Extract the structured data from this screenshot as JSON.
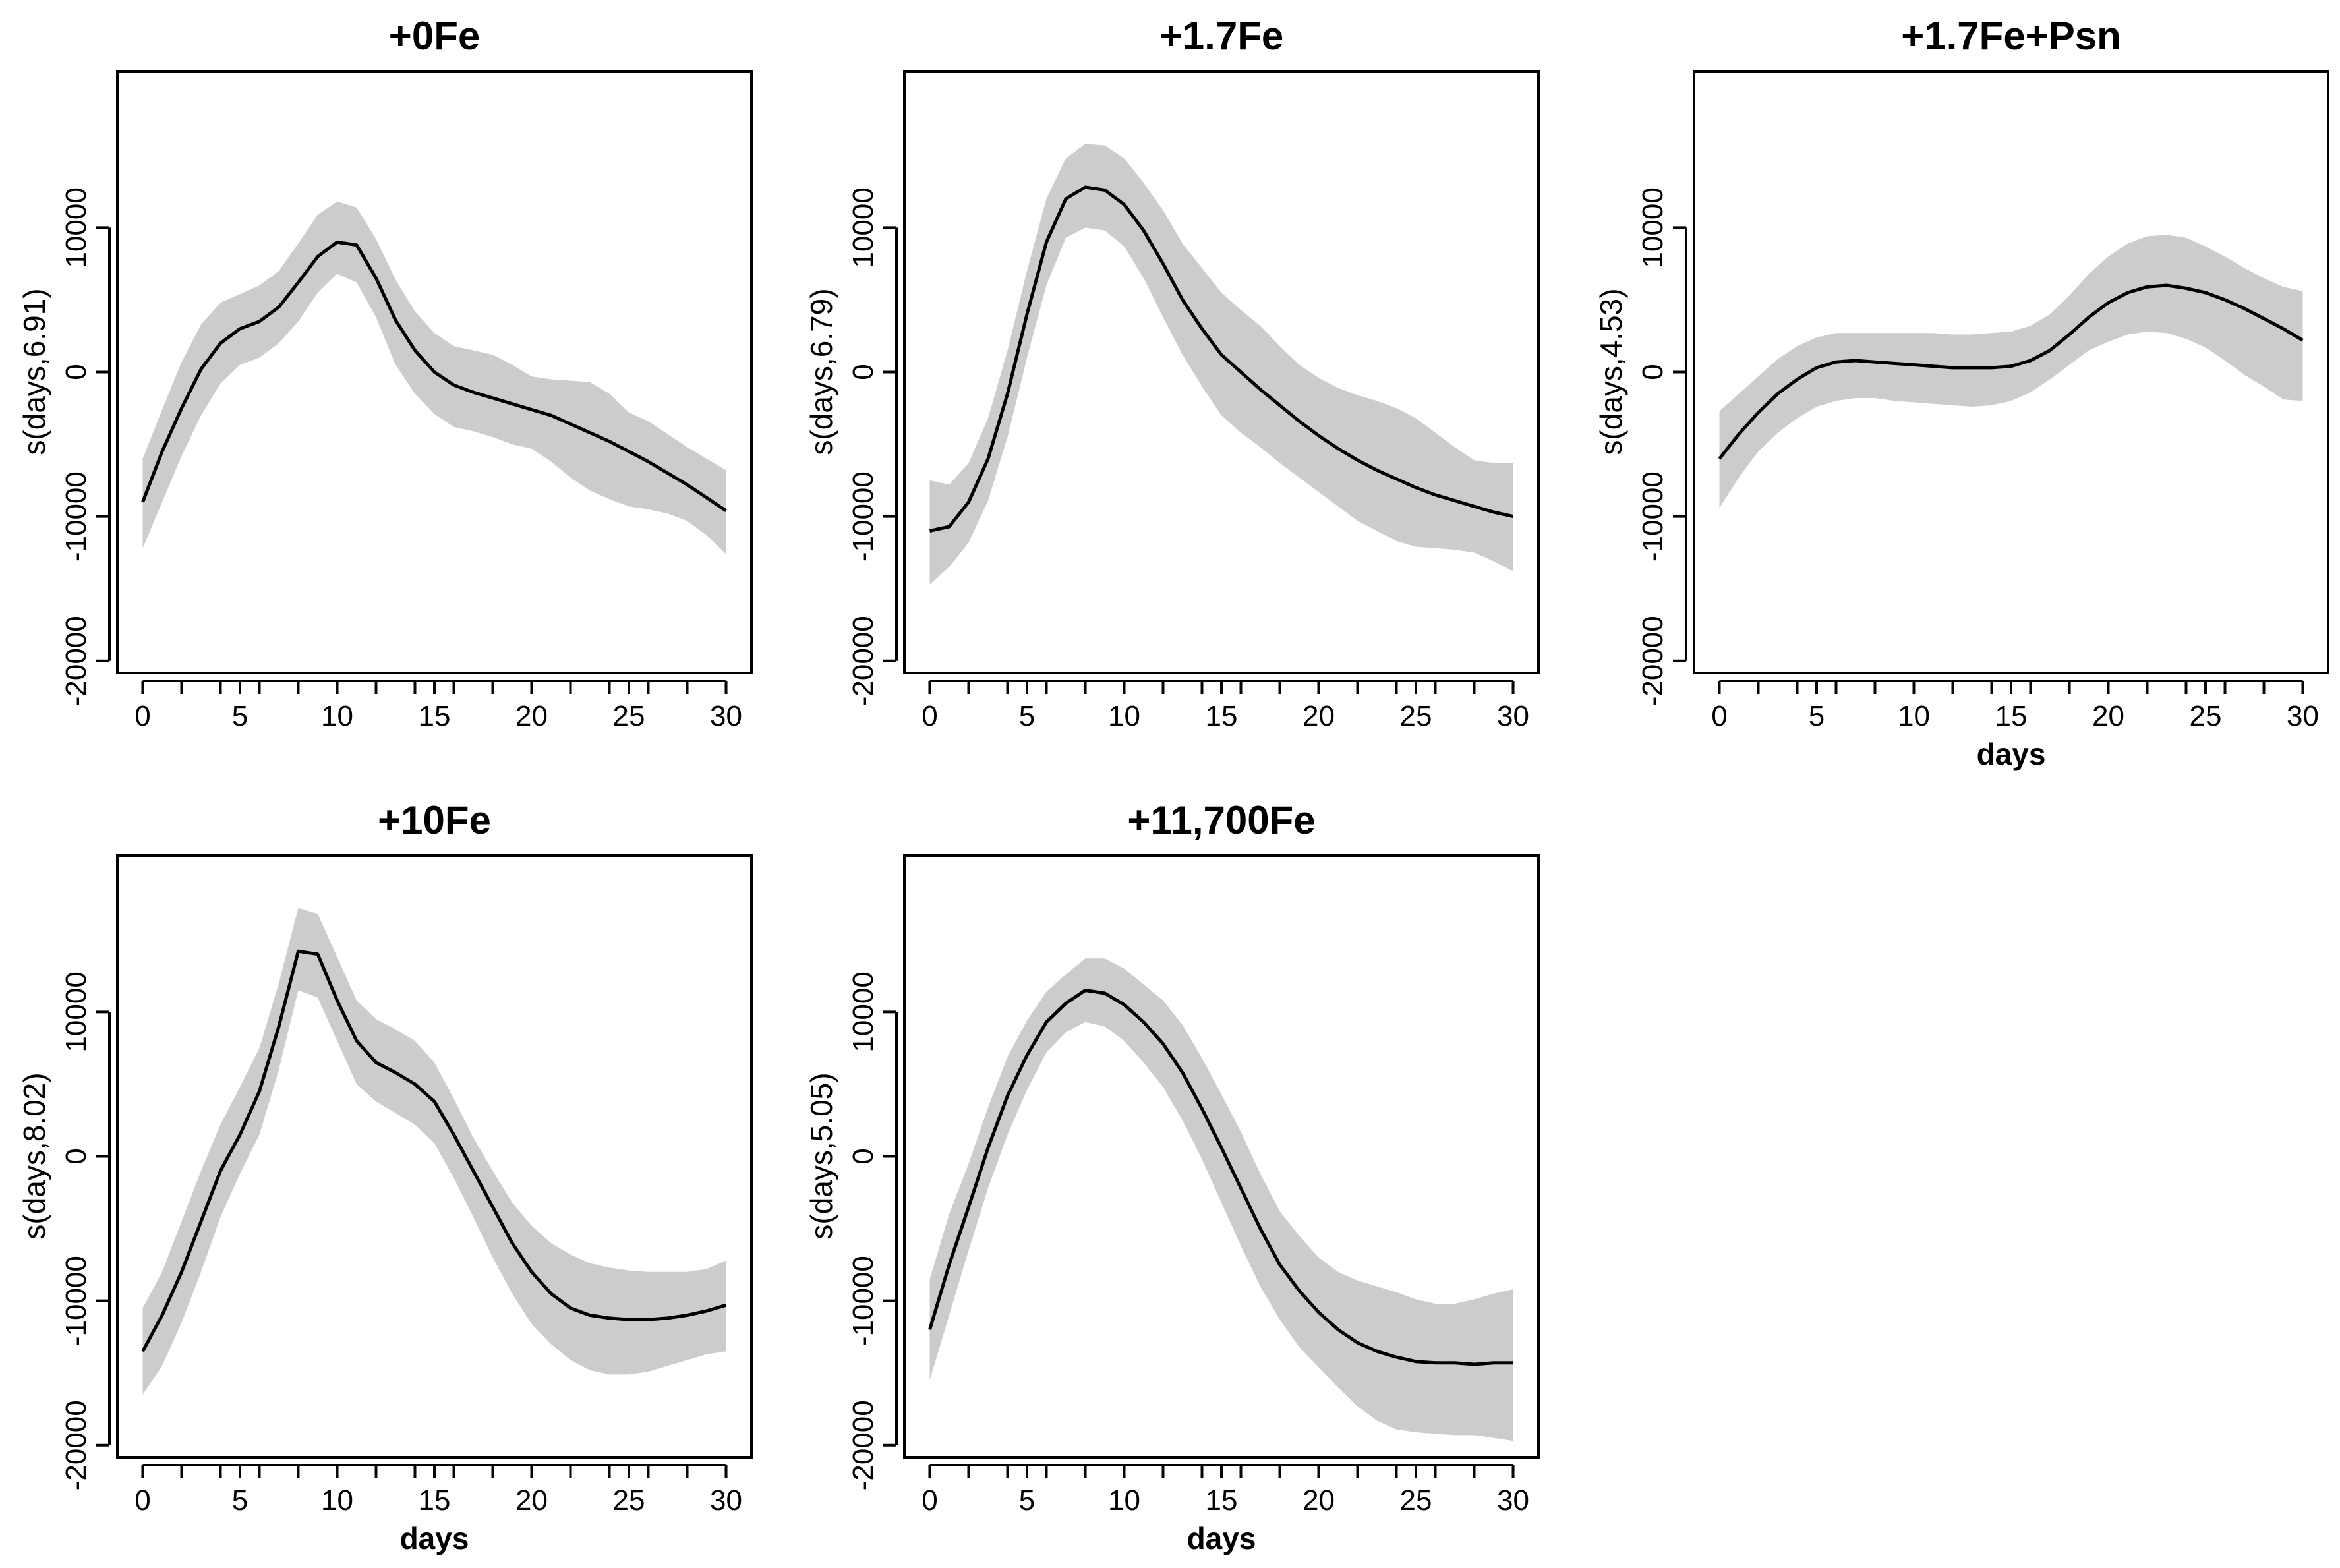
{
  "chart_data": [
    {
      "type": "line",
      "title": "+0Fe",
      "xlabel": "",
      "ylabel": "s(days,6.91)",
      "xlim": [
        0,
        30
      ],
      "ylim": [
        -20000,
        20000
      ],
      "xticks": [
        0,
        5,
        10,
        15,
        20,
        25,
        30
      ],
      "yticks": [
        -20000,
        -10000,
        0,
        10000
      ],
      "series": [
        {
          "name": "fit",
          "x": [
            0,
            1,
            2,
            3,
            4,
            5,
            6,
            7,
            8,
            9,
            10,
            11,
            12,
            13,
            14,
            15,
            16,
            17,
            18,
            19,
            20,
            21,
            22,
            23,
            24,
            25,
            26,
            27,
            28,
            29,
            30
          ],
          "values": [
            -9000,
            -5500,
            -2500,
            200,
            2000,
            3000,
            3500,
            4500,
            6200,
            8000,
            9000,
            8800,
            6500,
            3600,
            1500,
            0,
            -900,
            -1400,
            -1800,
            -2200,
            -2600,
            -3000,
            -3600,
            -4200,
            -4800,
            -5500,
            -6200,
            -7000,
            -7800,
            -8700,
            -9600
          ],
          "lower": [
            -12200,
            -9000,
            -5800,
            -3000,
            -800,
            500,
            1000,
            2000,
            3500,
            5500,
            6800,
            6200,
            3800,
            500,
            -1500,
            -2900,
            -3800,
            -4100,
            -4500,
            -5000,
            -5300,
            -6200,
            -7300,
            -8200,
            -8800,
            -9300,
            -9500,
            -9800,
            -10300,
            -11300,
            -12600
          ],
          "upper": [
            -6000,
            -2600,
            700,
            3300,
            4800,
            5400,
            6000,
            7000,
            8900,
            10900,
            11800,
            11400,
            9200,
            6400,
            4200,
            2700,
            1800,
            1500,
            1200,
            500,
            -300,
            -500,
            -600,
            -700,
            -1500,
            -2800,
            -3400,
            -4300,
            -5200,
            -6000,
            -6800
          ]
        }
      ]
    },
    {
      "type": "line",
      "title": "+1.7Fe",
      "xlabel": "",
      "ylabel": "s(days,6.79)",
      "xlim": [
        0,
        30
      ],
      "ylim": [
        -20000,
        20000
      ],
      "xticks": [
        0,
        5,
        10,
        15,
        20,
        25,
        30
      ],
      "yticks": [
        -20000,
        -10000,
        0,
        10000
      ],
      "series": [
        {
          "name": "fit",
          "x": [
            0,
            1,
            2,
            3,
            4,
            5,
            6,
            7,
            8,
            9,
            10,
            11,
            12,
            13,
            14,
            15,
            16,
            17,
            18,
            19,
            20,
            21,
            22,
            23,
            24,
            25,
            26,
            27,
            28,
            29,
            30
          ],
          "values": [
            -11000,
            -10700,
            -9000,
            -6000,
            -1500,
            4000,
            9000,
            12000,
            12800,
            12600,
            11600,
            9800,
            7500,
            5000,
            3000,
            1200,
            0,
            -1200,
            -2300,
            -3400,
            -4400,
            -5300,
            -6100,
            -6800,
            -7400,
            -8000,
            -8500,
            -8900,
            -9300,
            -9700,
            -10000
          ],
          "lower": [
            -14700,
            -13500,
            -11800,
            -8900,
            -4500,
            1000,
            6000,
            9300,
            10000,
            9800,
            8700,
            6500,
            3800,
            1200,
            -1000,
            -3000,
            -4200,
            -5200,
            -6300,
            -7300,
            -8300,
            -9300,
            -10300,
            -11000,
            -11700,
            -12100,
            -12200,
            -12300,
            -12500,
            -13100,
            -13800
          ],
          "upper": [
            -7500,
            -7800,
            -6300,
            -3200,
            1500,
            7000,
            12000,
            14800,
            15800,
            15700,
            14800,
            13100,
            11200,
            8900,
            7200,
            5500,
            4300,
            3200,
            1800,
            500,
            -400,
            -1100,
            -1600,
            -2000,
            -2500,
            -3200,
            -4200,
            -5200,
            -6100,
            -6300,
            -6300
          ]
        }
      ]
    },
    {
      "type": "line",
      "title": "+1.7Fe+Psn",
      "xlabel": "days",
      "ylabel": "s(days,4.53)",
      "xlim": [
        0,
        30
      ],
      "ylim": [
        -20000,
        20000
      ],
      "xticks": [
        0,
        5,
        10,
        15,
        20,
        25,
        30
      ],
      "yticks": [
        -20000,
        -10000,
        0,
        10000
      ],
      "series": [
        {
          "name": "fit",
          "x": [
            0,
            1,
            2,
            3,
            4,
            5,
            6,
            7,
            8,
            9,
            10,
            11,
            12,
            13,
            14,
            15,
            16,
            17,
            18,
            19,
            20,
            21,
            22,
            23,
            24,
            25,
            26,
            27,
            28,
            29,
            30
          ],
          "values": [
            -6000,
            -4300,
            -2800,
            -1500,
            -500,
            300,
            700,
            800,
            700,
            600,
            500,
            400,
            300,
            300,
            300,
            400,
            800,
            1500,
            2600,
            3800,
            4800,
            5500,
            5900,
            6000,
            5800,
            5500,
            5000,
            4400,
            3700,
            3000,
            2200
          ],
          "lower": [
            -9400,
            -7300,
            -5500,
            -4200,
            -3200,
            -2400,
            -2000,
            -1800,
            -1800,
            -2000,
            -2100,
            -2200,
            -2300,
            -2400,
            -2300,
            -2000,
            -1400,
            -500,
            500,
            1500,
            2100,
            2600,
            2800,
            2700,
            2300,
            1700,
            800,
            -200,
            -1000,
            -1900,
            -2000
          ],
          "upper": [
            -2700,
            -1500,
            -300,
            900,
            1800,
            2400,
            2700,
            2700,
            2700,
            2700,
            2700,
            2700,
            2600,
            2600,
            2700,
            2800,
            3200,
            4000,
            5300,
            6800,
            8000,
            8900,
            9400,
            9500,
            9300,
            8700,
            8000,
            7200,
            6500,
            5900,
            5600
          ]
        }
      ]
    },
    {
      "type": "line",
      "title": "+10Fe",
      "xlabel": "days",
      "ylabel": "s(days,8.02)",
      "xlim": [
        0,
        30
      ],
      "ylim": [
        -20000,
        20000
      ],
      "xticks": [
        0,
        5,
        10,
        15,
        20,
        25,
        30
      ],
      "yticks": [
        -20000,
        -10000,
        0,
        10000
      ],
      "series": [
        {
          "name": "fit",
          "x": [
            0,
            1,
            2,
            3,
            4,
            5,
            6,
            7,
            8,
            9,
            10,
            11,
            12,
            13,
            14,
            15,
            16,
            17,
            18,
            19,
            20,
            21,
            22,
            23,
            24,
            25,
            26,
            27,
            28,
            29,
            30
          ],
          "values": [
            -13500,
            -11000,
            -8000,
            -4500,
            -1000,
            1500,
            4500,
            9000,
            14200,
            14000,
            10800,
            8000,
            6500,
            5800,
            5000,
            3800,
            1500,
            -1000,
            -3500,
            -6000,
            -8000,
            -9500,
            -10500,
            -11000,
            -11200,
            -11300,
            -11300,
            -11200,
            -11000,
            -10700,
            -10300
          ],
          "lower": [
            -16500,
            -14500,
            -11500,
            -8000,
            -4200,
            -1200,
            1500,
            6000,
            11500,
            11000,
            8000,
            5000,
            3800,
            3000,
            2200,
            900,
            -1500,
            -4200,
            -7000,
            -9500,
            -11600,
            -13000,
            -14100,
            -14800,
            -15100,
            -15100,
            -14900,
            -14500,
            -14100,
            -13700,
            -13500
          ],
          "upper": [
            -10500,
            -8000,
            -4500,
            -1000,
            2200,
            4800,
            7500,
            12000,
            17200,
            16800,
            13800,
            10800,
            9500,
            8800,
            8000,
            6500,
            4000,
            1300,
            -1000,
            -3200,
            -4800,
            -6000,
            -6800,
            -7400,
            -7700,
            -7900,
            -8000,
            -8000,
            -8000,
            -7800,
            -7200
          ]
        }
      ]
    },
    {
      "type": "line",
      "title": "+11,700Fe",
      "xlabel": "days",
      "ylabel": "s(days,5.05)",
      "xlim": [
        0,
        30
      ],
      "ylim": [
        -20000,
        20000
      ],
      "xticks": [
        0,
        5,
        10,
        15,
        20,
        25,
        30
      ],
      "yticks": [
        -20000,
        -10000,
        0,
        10000
      ],
      "series": [
        {
          "name": "fit",
          "x": [
            0,
            1,
            2,
            3,
            4,
            5,
            6,
            7,
            8,
            9,
            10,
            11,
            12,
            13,
            14,
            15,
            16,
            17,
            18,
            19,
            20,
            21,
            22,
            23,
            24,
            25,
            26,
            27,
            28,
            29,
            30
          ],
          "values": [
            -12000,
            -7500,
            -3500,
            600,
            4200,
            7000,
            9300,
            10600,
            11500,
            11300,
            10500,
            9300,
            7800,
            5800,
            3300,
            600,
            -2200,
            -5000,
            -7500,
            -9300,
            -10800,
            -12000,
            -12900,
            -13500,
            -13900,
            -14200,
            -14300,
            -14300,
            -14400,
            -14300,
            -14300
          ],
          "lower": [
            -15500,
            -11000,
            -6500,
            -2200,
            1500,
            4600,
            7200,
            8600,
            9300,
            9000,
            8000,
            6500,
            4800,
            2500,
            -200,
            -3200,
            -6200,
            -9000,
            -11300,
            -13200,
            -14600,
            -16000,
            -17300,
            -18300,
            -18900,
            -19100,
            -19200,
            -19300,
            -19300,
            -19500,
            -19700
          ],
          "upper": [
            -8500,
            -4000,
            -500,
            3400,
            6900,
            9400,
            11400,
            12600,
            13700,
            13700,
            13000,
            11900,
            10800,
            9100,
            6800,
            4300,
            1700,
            -1200,
            -3800,
            -5500,
            -7000,
            -8000,
            -8600,
            -9000,
            -9400,
            -9900,
            -10200,
            -10200,
            -9900,
            -9500,
            -9200
          ]
        }
      ]
    }
  ],
  "colors": {
    "band": "#cccccc",
    "line": "#000000",
    "frame": "#000000"
  }
}
